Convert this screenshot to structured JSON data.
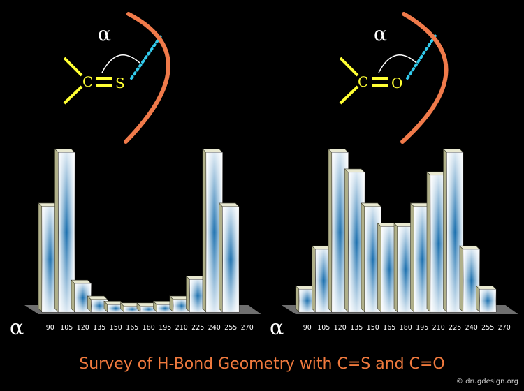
{
  "title": "Survey of H-Bond Geometry with C=S and C=O",
  "credit": "© drugdesign.org",
  "axis_symbol": "α",
  "colors": {
    "background": "#000000",
    "title": "#f07a3e",
    "atom": "#ffff33",
    "hbond": "#33ccee",
    "acceptor_arc": "#f07a4a",
    "bar_dark": "#1a6fae",
    "bar_light": "#ffffff",
    "bar_side": "#b0b08a"
  },
  "diagrams": [
    {
      "atom1": "C",
      "atom2": "S",
      "angle_label": "α"
    },
    {
      "atom1": "C",
      "atom2": "O",
      "angle_label": "α"
    }
  ],
  "chart_data": [
    {
      "type": "bar",
      "categories": [
        "90",
        "105",
        "120",
        "135",
        "150",
        "165",
        "180",
        "195",
        "210",
        "225",
        "240",
        "255",
        "270"
      ],
      "values": [
        18.5,
        28,
        5,
        2.2,
        1.3,
        1,
        1,
        1.3,
        2.2,
        5.7,
        28,
        18.5,
        0
      ],
      "ylim": [
        0,
        30
      ],
      "xlabel": "α",
      "ylabel": "",
      "grid": false
    },
    {
      "type": "bar",
      "categories": [
        "90",
        "105",
        "120",
        "135",
        "150",
        "165",
        "180",
        "195",
        "210",
        "225",
        "240",
        "255",
        "270"
      ],
      "values": [
        4,
        11,
        28,
        24.5,
        18.5,
        15,
        15,
        18.5,
        24,
        28,
        11,
        4,
        0
      ],
      "ylim": [
        0,
        30
      ],
      "xlabel": "α",
      "ylabel": "",
      "grid": false
    }
  ]
}
